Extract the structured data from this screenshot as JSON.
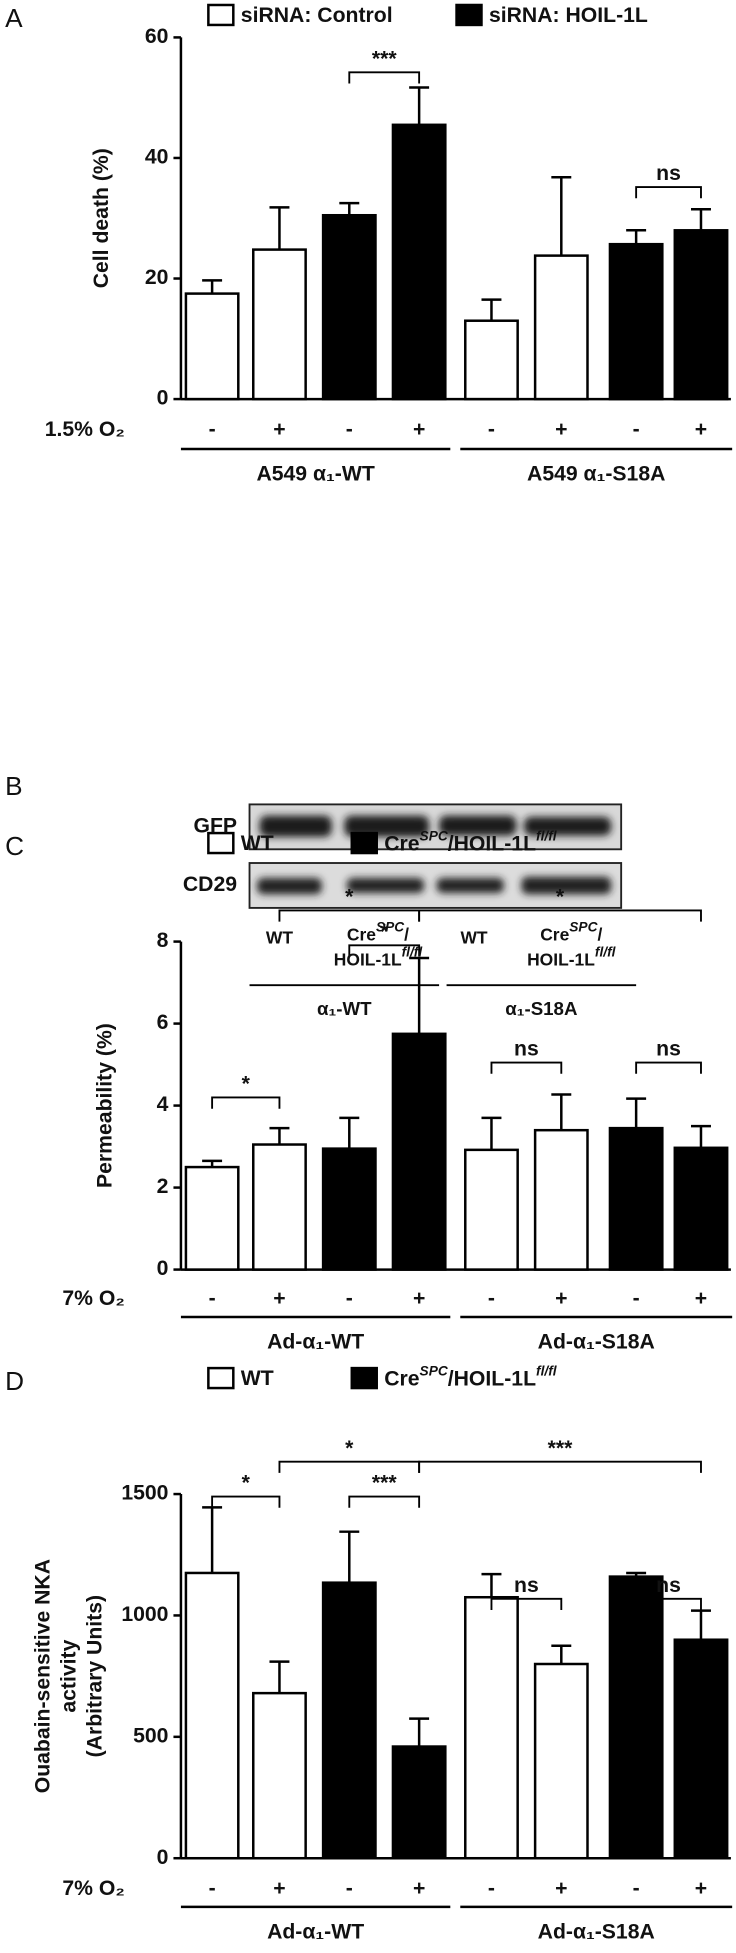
{
  "chart_data": [
    {
      "type": "bar",
      "panel_label": "A",
      "ylabel": "Cell death (%)",
      "condition_label": "1.5% O₂",
      "categories": [
        "-",
        "+",
        "-",
        "+",
        "-",
        "+",
        "-",
        "+"
      ],
      "groups": [
        "A549 α₁-WT",
        "A549 α₁-S18A"
      ],
      "series": [
        {
          "name": "siRNA: Control",
          "color": "#ffffff",
          "values": [
            17.5,
            24.8,
            null,
            null,
            13,
            23.8,
            null,
            null
          ],
          "errors": [
            2.2,
            7,
            null,
            null,
            3.5,
            13,
            null,
            null
          ]
        },
        {
          "name": "siRNA: HOIL-1L",
          "color": "#000000",
          "values": [
            null,
            null,
            30.5,
            45.5,
            null,
            null,
            25.7,
            28
          ],
          "errors": [
            null,
            null,
            2,
            6.2,
            null,
            null,
            2.3,
            3.5
          ]
        }
      ],
      "ylim": [
        0,
        60
      ],
      "yticks": [
        0,
        20,
        40,
        60
      ],
      "annotations": [
        "***",
        "ns"
      ]
    },
    {
      "type": "bar",
      "panel_label": "C",
      "ylabel": "Permeability (%)",
      "condition_label": "7% O₂",
      "categories": [
        "-",
        "+",
        "-",
        "+",
        "-",
        "+",
        "-",
        "+"
      ],
      "groups": [
        "Ad-α₁-WT",
        "Ad-α₁-S18A"
      ],
      "series": [
        {
          "name": "WT",
          "color": "#ffffff",
          "values": [
            2.5,
            3.05,
            null,
            null,
            2.92,
            3.4,
            null,
            null
          ],
          "errors": [
            0.15,
            0.4,
            null,
            null,
            0.78,
            0.87,
            null,
            null
          ]
        },
        {
          "name": [
            "Cre",
            "SPC",
            "/HOIL-1L",
            "fl/fl"
          ],
          "color": "#000000",
          "values": [
            null,
            null,
            2.95,
            5.75,
            null,
            null,
            3.45,
            2.97
          ],
          "errors": [
            null,
            null,
            0.75,
            1.85,
            null,
            null,
            0.72,
            0.53
          ]
        }
      ],
      "ylim": [
        0,
        8
      ],
      "yticks": [
        0,
        2,
        4,
        6,
        8
      ],
      "annotations": [
        "*",
        "*",
        "*",
        "*",
        "ns",
        "ns"
      ]
    },
    {
      "type": "bar",
      "panel_label": "D",
      "ylabel": [
        "Ouabain-sensitive NKA",
        "activity",
        "(Arbitrary Units)"
      ],
      "condition_label": "7% O₂",
      "categories": [
        "-",
        "+",
        "-",
        "+",
        "-",
        "+",
        "-",
        "+"
      ],
      "groups": [
        "Ad-α₁-WT",
        "Ad-α₁-S18A"
      ],
      "series": [
        {
          "name": "WT",
          "color": "#ffffff",
          "values": [
            1175,
            680,
            null,
            null,
            1075,
            800,
            null,
            null
          ],
          "errors": [
            270,
            130,
            null,
            null,
            95,
            75,
            null,
            null
          ]
        },
        {
          "name": [
            "Cre",
            "SPC",
            "/HOIL-1L",
            "fl/fl"
          ],
          "color": "#000000",
          "values": [
            null,
            null,
            1135,
            460,
            null,
            null,
            1160,
            900
          ],
          "errors": [
            null,
            null,
            210,
            115,
            null,
            null,
            15,
            120
          ]
        }
      ],
      "ylim": [
        0,
        1500
      ],
      "yticks": [
        0,
        500,
        1000,
        1500
      ],
      "annotations": [
        "*",
        "***",
        "*",
        "***",
        "ns",
        "ns"
      ]
    }
  ],
  "blot": {
    "panel_label": "B",
    "rows": [
      "GFP",
      "CD29"
    ],
    "lanes": [
      [
        "WT"
      ],
      [
        "Cre",
        "SPC",
        "/",
        "HOIL-1L",
        "fl/fl"
      ],
      [
        "WT"
      ],
      [
        "Cre",
        "SPC",
        "/",
        "HOIL-1L",
        "fl/fl"
      ]
    ],
    "groups": [
      "α₁-WT",
      "α₁-S18A"
    ]
  }
}
